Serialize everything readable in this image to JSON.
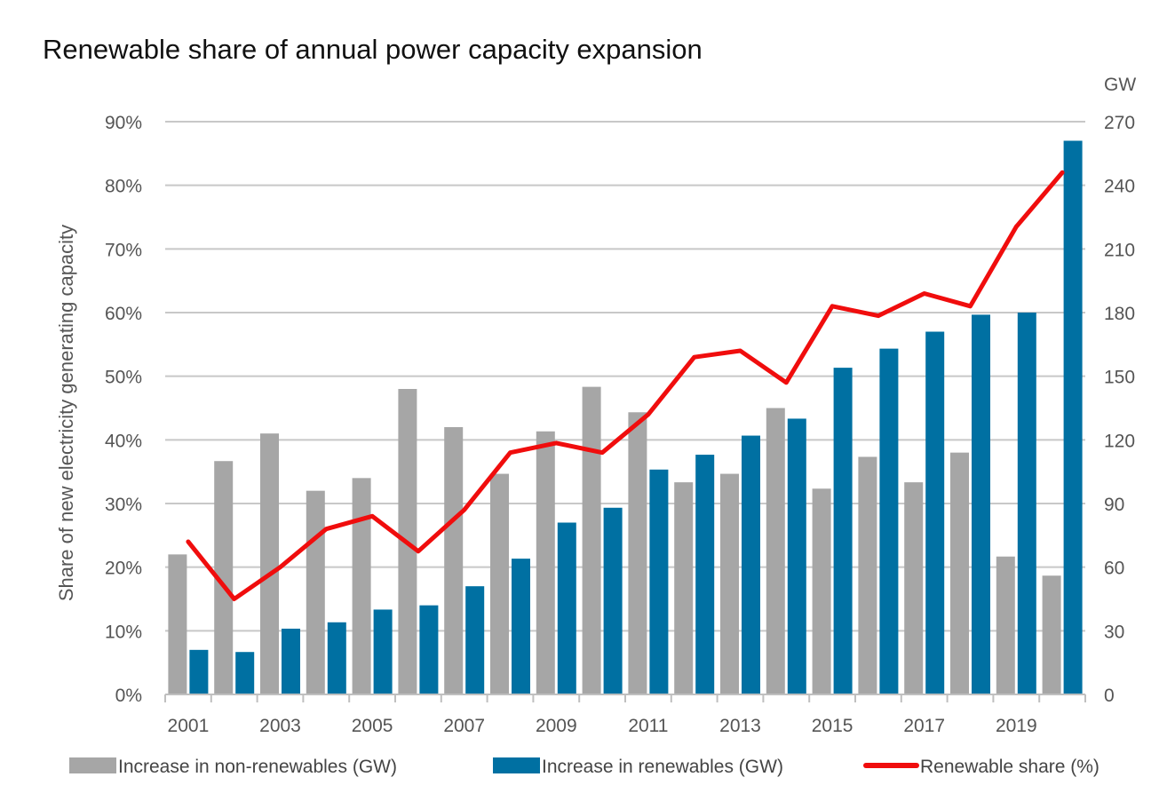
{
  "chart_data": {
    "type": "bar",
    "title": "Renewable share of annual power capacity expansion",
    "ylabel_left": "Share of new electricity generating capacity",
    "ylabel_right": "GW",
    "categories": [
      "2001",
      "2002",
      "2003",
      "2004",
      "2005",
      "2006",
      "2007",
      "2008",
      "2009",
      "2010",
      "2011",
      "2012",
      "2013",
      "2014",
      "2015",
      "2016",
      "2017",
      "2018",
      "2019",
      "2020"
    ],
    "x_tick_labels": [
      "2001",
      "2003",
      "2005",
      "2007",
      "2009",
      "2011",
      "2013",
      "2015",
      "2017",
      "2019"
    ],
    "y_left_ticks": [
      "0%",
      "10%",
      "20%",
      "30%",
      "40%",
      "50%",
      "60%",
      "70%",
      "80%",
      "90%"
    ],
    "y_right_ticks": [
      "0",
      "30",
      "60",
      "90",
      "120",
      "150",
      "180",
      "210",
      "240",
      "270"
    ],
    "y_left_lim": [
      0,
      90
    ],
    "y_right_lim": [
      0,
      270
    ],
    "grid": true,
    "legend_position": "bottom",
    "series": [
      {
        "name": "Increase in non-renewables (GW)",
        "type": "bar",
        "axis": "right",
        "color": "#a6a6a6",
        "values": [
          66,
          110,
          123,
          96,
          102,
          144,
          126,
          104,
          124,
          145,
          133,
          100,
          104,
          135,
          97,
          112,
          100,
          114,
          65,
          56
        ]
      },
      {
        "name": "Increase in renewables (GW)",
        "type": "bar",
        "axis": "right",
        "color": "#0070a2",
        "values": [
          21,
          20,
          31,
          34,
          40,
          42,
          51,
          64,
          81,
          88,
          106,
          113,
          122,
          130,
          154,
          163,
          171,
          179,
          180,
          261
        ]
      },
      {
        "name": "Renewable share (%)",
        "type": "line",
        "axis": "left",
        "color": "#f00d0d",
        "values": [
          24,
          15,
          20,
          26,
          28,
          22.5,
          29,
          38,
          39.5,
          38,
          44,
          53,
          54,
          49,
          61,
          59.5,
          63,
          61,
          73.5,
          82
        ]
      }
    ]
  }
}
